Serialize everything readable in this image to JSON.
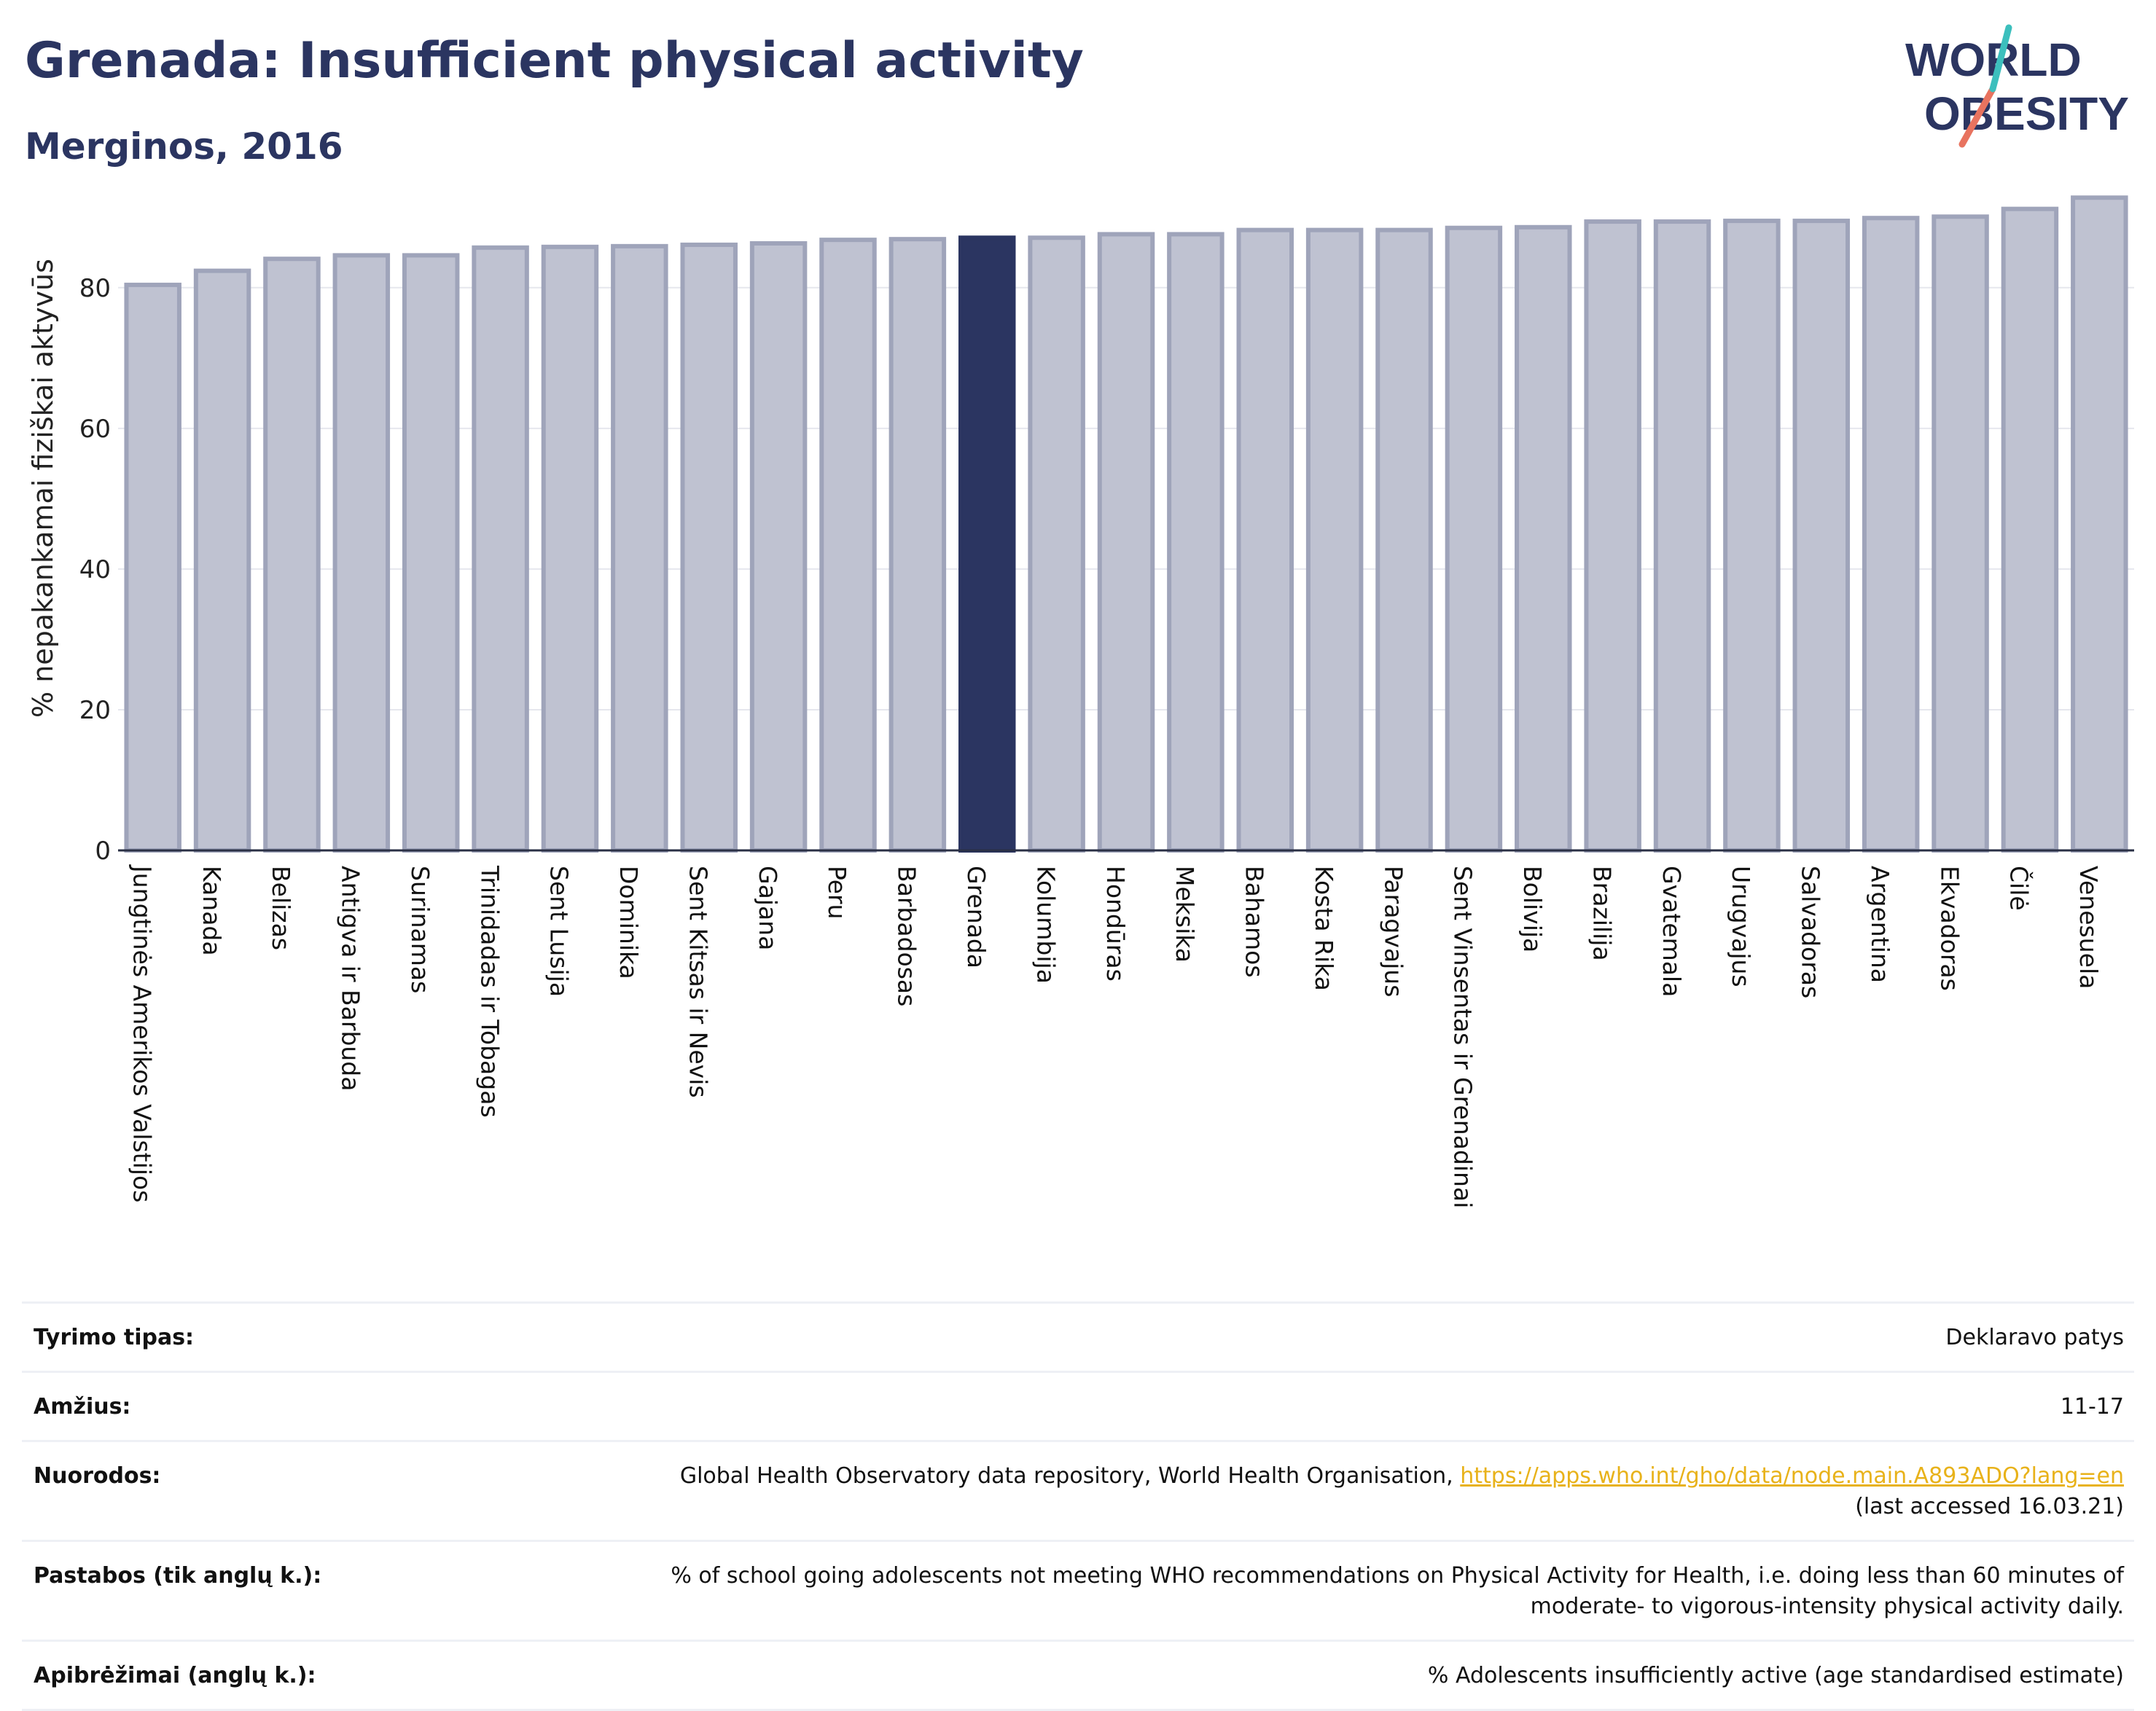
{
  "header": {
    "title": "Grenada: Insufficient physical activity",
    "subtitle": "Merginos, 2016"
  },
  "logo": {
    "line1": "WORLD",
    "line2": "OBESITY"
  },
  "colors": {
    "bar": "#bfc2d1",
    "bar_stroke": "#9fa4ba",
    "highlight": "#2b3561",
    "title": "#2b3561",
    "link": "#e8b21a",
    "logo_slash_red": "#e8735f",
    "logo_slash_teal": "#3cbfbd"
  },
  "chart_data": {
    "type": "bar",
    "ylabel": "% nepakankamai fiziškai aktyvūs",
    "ylim": [
      0,
      95
    ],
    "yticks": [
      0,
      20,
      40,
      60,
      80
    ],
    "grid": true,
    "highlight": "Grenada",
    "categories": [
      "Jungtinės Amerikos Valstijos",
      "Kanada",
      "Belizas",
      "Antigva ir Barbuda",
      "Surinamas",
      "Trinidadas ir Tobagas",
      "Sent Lusija",
      "Dominika",
      "Sent Kitsas ir Nevis",
      "Gajana",
      "Peru",
      "Barbadosas",
      "Grenada",
      "Kolumbija",
      "Hondūras",
      "Meksika",
      "Bahamos",
      "Kosta Rika",
      "Paragvajus",
      "Sent Vinsentas ir Grenadinai",
      "Bolivija",
      "Brazilija",
      "Gvatemala",
      "Urugvajus",
      "Salvadoras",
      "Argentina",
      "Ekvadoras",
      "Čilė",
      "Venesuela"
    ],
    "values": [
      80.4,
      82.4,
      84.1,
      84.6,
      84.6,
      85.7,
      85.8,
      85.9,
      86.1,
      86.3,
      86.8,
      86.9,
      87.1,
      87.1,
      87.6,
      87.6,
      88.2,
      88.2,
      88.2,
      88.5,
      88.6,
      89.4,
      89.4,
      89.5,
      89.5,
      89.9,
      90.1,
      91.2,
      92.8
    ]
  },
  "info": {
    "rows": [
      {
        "label": "Tyrimo tipas:",
        "value": "Deklaravo patys"
      },
      {
        "label": "Amžius:",
        "value": "11-17"
      },
      {
        "label": "Nuorodos:",
        "value": "Global Health Observatory data repository, World Health Organisation,",
        "link": "https://apps.who.int/gho/data/node.main.A893ADO?lang=en",
        "value2": "(last accessed 16.03.21)"
      },
      {
        "label": "Pastabos (tik anglų k.):",
        "value": "% of school going adolescents not meeting WHO recommendations on Physical Activity for Health, i.e. doing less than 60 minutes of",
        "value2": "moderate- to vigorous-intensity physical activity daily."
      },
      {
        "label": "Apibrėžimai (anglų k.):",
        "value": "% Adolescents insufficiently active (age standardised estimate)"
      }
    ]
  }
}
